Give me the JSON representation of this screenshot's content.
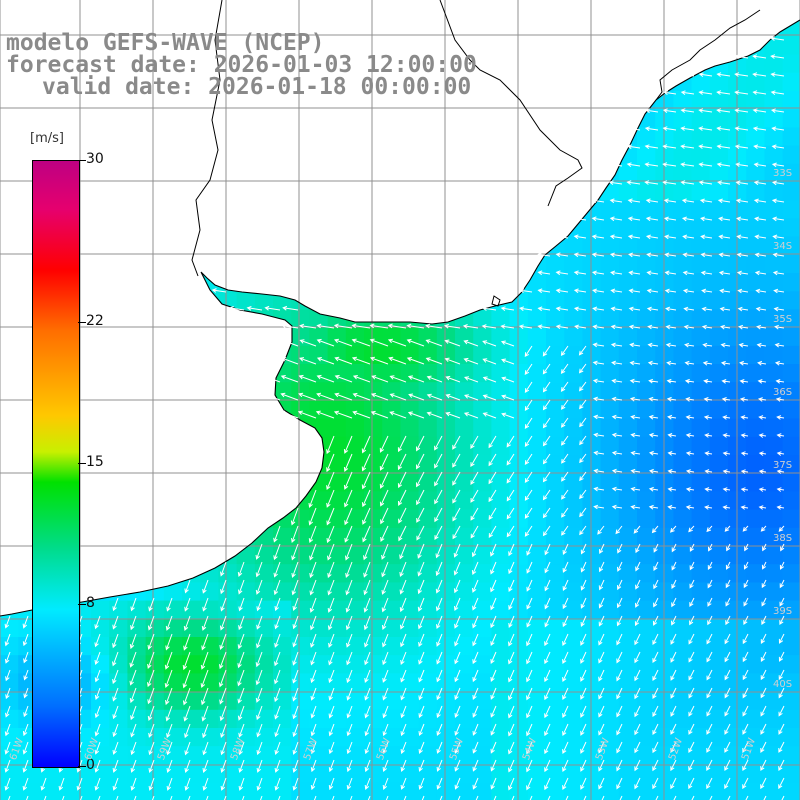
{
  "title": {
    "line1": "modelo GEFS-WAVE (NCEP)",
    "line2": "forecast date: 2026-01-03 12:00:00",
    "line3": "valid date: 2026-01-18 00:00:00"
  },
  "colorbar": {
    "unit": "[m/s]",
    "min": 0,
    "max": 30,
    "ticks": [
      "30",
      "22",
      "15",
      "8",
      "0"
    ],
    "tick_values": [
      30,
      22,
      15,
      8,
      0
    ]
  },
  "colors": {
    "land": "#ffffff",
    "grid": "#909090",
    "coast": "#000000",
    "arrow": "#ffffff",
    "title": "#8a8a8a"
  },
  "lat_labels": [
    "33S",
    "34S",
    "35S",
    "36S",
    "37S",
    "38S",
    "39S",
    "40S"
  ],
  "lon_labels": [
    "61W",
    "60W",
    "59W",
    "58W",
    "57W",
    "56W",
    "55W",
    "54W",
    "53W",
    "52W",
    "51W"
  ]
}
